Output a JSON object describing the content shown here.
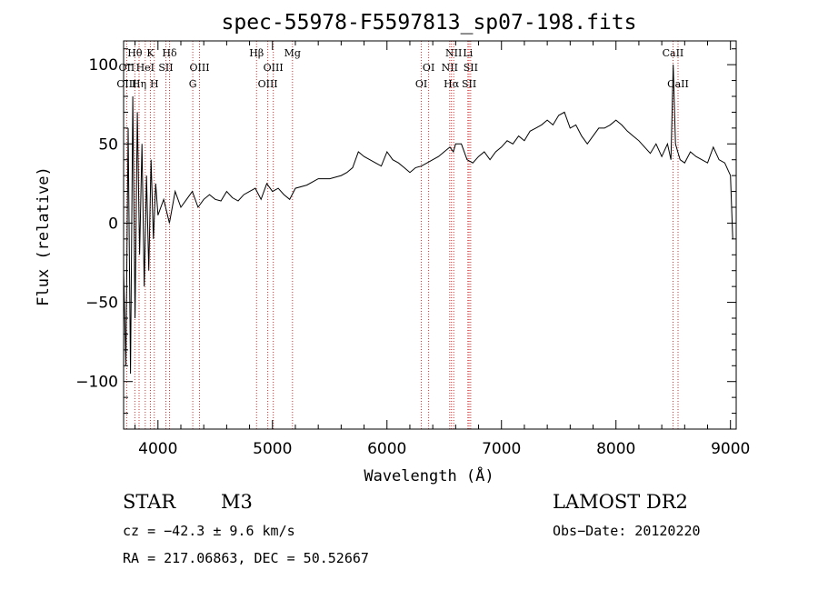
{
  "chart_data": {
    "type": "line",
    "title": "spec-55978-F5597813_sp07-198.fits",
    "xlabel": "Wavelength (Å)",
    "ylabel": "Flux (relative)",
    "xlim": [
      3700,
      9050
    ],
    "ylim": [
      -130,
      115
    ],
    "xticks": [
      4000,
      5000,
      6000,
      7000,
      8000,
      9000
    ],
    "yticks": [
      -100,
      -50,
      0,
      50,
      100
    ],
    "ytick_labels": [
      "−100",
      "−50",
      "0",
      "50",
      "100"
    ],
    "grid": false,
    "series": [
      {
        "x": [
          3700,
          3720,
          3740,
          3760,
          3780,
          3800,
          3820,
          3840,
          3860,
          3880,
          3900,
          3920,
          3940,
          3960,
          3980,
          4000,
          4050,
          4100,
          4150,
          4200,
          4250,
          4300,
          4350,
          4400,
          4450,
          4500,
          4550,
          4600,
          4650,
          4700,
          4750,
          4800,
          4850,
          4900,
          4950,
          5000,
          5050,
          5100,
          5150,
          5200,
          5300,
          5400,
          5500,
          5600,
          5650,
          5700,
          5750,
          5800,
          5850,
          5900,
          5950,
          6000,
          6050,
          6100,
          6150,
          6200,
          6250,
          6300,
          6350,
          6400,
          6450,
          6500,
          6550,
          6580,
          6600,
          6650,
          6700,
          6750,
          6800,
          6850,
          6900,
          6950,
          7000,
          7050,
          7100,
          7150,
          7200,
          7250,
          7300,
          7350,
          7400,
          7450,
          7500,
          7550,
          7600,
          7650,
          7700,
          7750,
          7800,
          7850,
          7900,
          7950,
          8000,
          8050,
          8100,
          8150,
          8200,
          8250,
          8300,
          8350,
          8400,
          8450,
          8480,
          8500,
          8520,
          8540,
          8560,
          8600,
          8650,
          8700,
          8750,
          8800,
          8850,
          8900,
          8950,
          9000,
          9020
        ],
        "y": [
          -30,
          -90,
          60,
          -95,
          80,
          -60,
          70,
          -20,
          50,
          -40,
          30,
          -30,
          40,
          -10,
          25,
          5,
          15,
          0,
          20,
          10,
          15,
          20,
          10,
          15,
          18,
          15,
          14,
          20,
          16,
          14,
          18,
          20,
          22,
          15,
          25,
          20,
          22,
          18,
          15,
          22,
          24,
          28,
          28,
          30,
          32,
          35,
          45,
          42,
          40,
          38,
          36,
          45,
          40,
          38,
          35,
          32,
          35,
          36,
          38,
          40,
          42,
          45,
          48,
          45,
          50,
          50,
          40,
          38,
          42,
          45,
          40,
          45,
          48,
          52,
          50,
          55,
          52,
          58,
          60,
          62,
          65,
          62,
          68,
          70,
          60,
          62,
          55,
          50,
          55,
          60,
          60,
          62,
          65,
          62,
          58,
          55,
          52,
          48,
          44,
          50,
          42,
          50,
          40,
          100,
          50,
          45,
          40,
          38,
          45,
          42,
          40,
          38,
          48,
          40,
          38,
          30,
          -10
        ]
      }
    ],
    "line_labels": [
      {
        "text": "Hθ",
        "x": 3798,
        "row": 1
      },
      {
        "text": "K",
        "x": 3934,
        "row": 1
      },
      {
        "text": "Hδ",
        "x": 4101,
        "row": 1
      },
      {
        "text": "OII",
        "x": 3727,
        "row": 2
      },
      {
        "text": "HeI",
        "x": 3889,
        "row": 2
      },
      {
        "text": "SII",
        "x": 4069,
        "row": 2
      },
      {
        "text": "OIII",
        "x": 4363,
        "row": 2
      },
      {
        "text": "OIII",
        "x": 3727,
        "row": 3
      },
      {
        "text": "Hη",
        "x": 3835,
        "row": 3
      },
      {
        "text": "H",
        "x": 3968,
        "row": 3
      },
      {
        "text": "G",
        "x": 4304,
        "row": 3
      },
      {
        "text": "Hβ",
        "x": 4861,
        "row": 1
      },
      {
        "text": "Mg",
        "x": 5175,
        "row": 1
      },
      {
        "text": "OIII",
        "x": 5007,
        "row": 2
      },
      {
        "text": "OIII",
        "x": 4959,
        "row": 3
      },
      {
        "text": "NII",
        "x": 6583,
        "row": 1
      },
      {
        "text": "Li",
        "x": 6707,
        "row": 1
      },
      {
        "text": "OI",
        "x": 6364,
        "row": 2
      },
      {
        "text": "NII",
        "x": 6548,
        "row": 2
      },
      {
        "text": "SII",
        "x": 6731,
        "row": 2
      },
      {
        "text": "OI",
        "x": 6300,
        "row": 3
      },
      {
        "text": "Hα",
        "x": 6563,
        "row": 3
      },
      {
        "text": "SII",
        "x": 6717,
        "row": 3
      },
      {
        "text": "CaII",
        "x": 8498,
        "row": 1
      },
      {
        "text": "CaII",
        "x": 8542,
        "row": 3
      }
    ],
    "line_markers": [
      3727,
      3798,
      3835,
      3889,
      3934,
      3968,
      4069,
      4101,
      4304,
      4363,
      4861,
      4959,
      5007,
      5175,
      6300,
      6364,
      6548,
      6563,
      6583,
      6707,
      6717,
      6731,
      8498,
      8542
    ],
    "marker_color": "#cc3333"
  },
  "info": {
    "object_type": "STAR",
    "subclass": "M3",
    "survey": "LAMOST DR2",
    "cz": "cz = −42.3 ± 9.6 km/s",
    "obs_date": "Obs−Date: 20120220",
    "coords": "RA = 217.06863, DEC =  50.52667"
  }
}
